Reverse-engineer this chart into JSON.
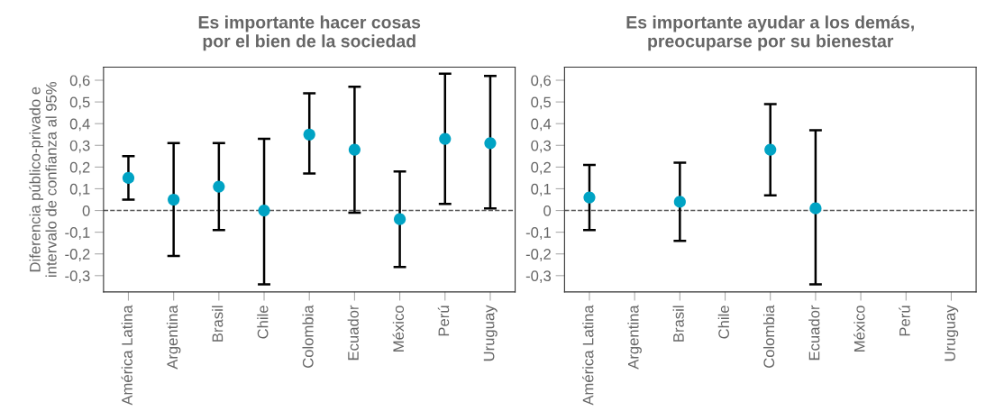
{
  "chart_data": [
    {
      "type": "scatter",
      "title": "Es importante hacer cosas\npor el bien de la sociedad",
      "ylabel": "Diferencia público-privado e\nintervalo de confianza al 95%",
      "categories": [
        "América Latina",
        "Argentina",
        "Brasil",
        "Chile",
        "Colombia",
        "Ecuador",
        "México",
        "Perú",
        "Uruguay"
      ],
      "series": [
        {
          "color": "#00a3c4",
          "values": [
            0.15,
            0.05,
            0.11,
            0.0,
            0.35,
            0.28,
            -0.04,
            0.33,
            0.31
          ],
          "errors": [
            [
              0.05,
              0.25
            ],
            [
              -0.21,
              0.31
            ],
            [
              -0.09,
              0.31
            ],
            [
              -0.34,
              0.33
            ],
            [
              0.17,
              0.54
            ],
            [
              -0.01,
              0.57
            ],
            [
              -0.26,
              0.18
            ],
            [
              0.03,
              0.63
            ],
            [
              0.01,
              0.62
            ]
          ]
        }
      ],
      "ylim": [
        -0.375,
        0.66
      ],
      "yticks": [
        {
          "value": -0.3,
          "label": "-0,3"
        },
        {
          "value": -0.2,
          "label": "-0,2"
        },
        {
          "value": -0.1,
          "label": "-0,1"
        },
        {
          "value": 0,
          "label": "0"
        },
        {
          "value": 0.1,
          "label": "0,1"
        },
        {
          "value": 0.2,
          "label": "0,2"
        },
        {
          "value": 0.3,
          "label": "0,3"
        },
        {
          "value": 0.4,
          "label": "0,4"
        },
        {
          "value": 0.5,
          "label": "0,5"
        },
        {
          "value": 0.6,
          "label": "0,6"
        }
      ],
      "ref_lines": [
        {
          "axis": "y",
          "value": 0,
          "color": "#555555",
          "line_style": "dashed"
        }
      ],
      "marker": "circle",
      "grid": false,
      "legend": false
    },
    {
      "type": "scatter",
      "title": "Es importante ayudar a los demás,\npreocuparse por su bienestar",
      "categories": [
        "América Latina",
        "Argentina",
        "Brasil",
        "Chile",
        "Colombia",
        "Ecuador",
        "México",
        "Perú",
        "Uruguay"
      ],
      "series": [
        {
          "color": "#00a3c4",
          "values": [
            0.06,
            null,
            0.04,
            null,
            0.28,
            0.01,
            null,
            null,
            null
          ],
          "errors": [
            [
              -0.09,
              0.21
            ],
            null,
            [
              -0.14,
              0.22
            ],
            null,
            [
              0.07,
              0.49
            ],
            [
              -0.34,
              0.37
            ],
            null,
            null,
            null
          ]
        }
      ],
      "ylim": [
        -0.375,
        0.66
      ],
      "yticks": [
        {
          "value": -0.3,
          "label": "-0,3"
        },
        {
          "value": -0.2,
          "label": "-0,2"
        },
        {
          "value": -0.1,
          "label": "-0,1"
        },
        {
          "value": 0,
          "label": "0"
        },
        {
          "value": 0.1,
          "label": "0,1"
        },
        {
          "value": 0.2,
          "label": "0,2"
        },
        {
          "value": 0.3,
          "label": "0,3"
        },
        {
          "value": 0.4,
          "label": "0,4"
        },
        {
          "value": 0.5,
          "label": "0,5"
        },
        {
          "value": 0.6,
          "label": "0,6"
        }
      ],
      "ref_lines": [
        {
          "axis": "y",
          "value": 0,
          "color": "#555555",
          "line_style": "dashed"
        }
      ],
      "marker": "circle",
      "grid": false,
      "legend": false
    }
  ]
}
